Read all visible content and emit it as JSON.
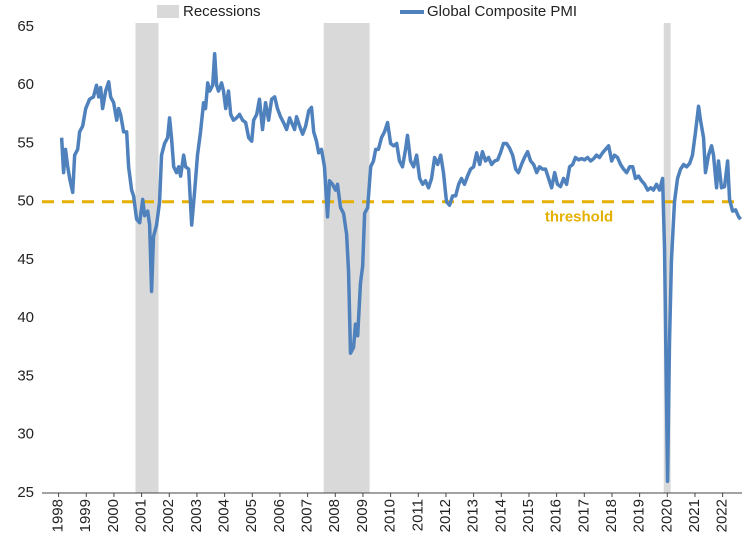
{
  "chart_data": {
    "type": "line",
    "legend": "top",
    "xlim": [
      1997.4,
      2022.7
    ],
    "ylim": [
      25,
      65
    ],
    "yticks": [
      25,
      30,
      35,
      40,
      45,
      50,
      55,
      60,
      65
    ],
    "xticks": [
      1998,
      1999,
      2000,
      2001,
      2002,
      2003,
      2004,
      2005,
      2006,
      2007,
      2008,
      2009,
      2010,
      2011,
      2012,
      2013,
      2014,
      2015,
      2016,
      2017,
      2018,
      2019,
      2020,
      2021,
      2022
    ],
    "recessions": {
      "name": "Recessions",
      "color": "#d9d9d9",
      "spans": [
        [
          2000.78,
          2001.61
        ],
        [
          2007.58,
          2009.24
        ],
        [
          2019.87,
          2020.12
        ]
      ]
    },
    "threshold": {
      "label": "threshold",
      "value": 50,
      "color": "#e6b000"
    },
    "x": [
      1998.11,
      1998.18,
      1998.25,
      1998.33,
      1998.4,
      1998.51,
      1998.58,
      1998.69,
      1998.76,
      1998.87,
      1998.98,
      1999.12,
      1999.26,
      1999.37,
      1999.45,
      1999.52,
      1999.59,
      1999.7,
      1999.81,
      1999.88,
      1999.99,
      2000.1,
      2000.17,
      2000.24,
      2000.35,
      2000.46,
      2000.53,
      2000.64,
      2000.71,
      2000.82,
      2000.93,
      2001.04,
      2001.11,
      2001.22,
      2001.29,
      2001.36,
      2001.43,
      2001.54,
      2001.65,
      2001.72,
      2001.83,
      2001.94,
      2002.01,
      2002.08,
      2002.16,
      2002.26,
      2002.34,
      2002.41,
      2002.52,
      2002.59,
      2002.7,
      2002.81,
      2002.92,
      2003.02,
      2003.13,
      2003.24,
      2003.31,
      2003.39,
      2003.46,
      2003.57,
      2003.64,
      2003.71,
      2003.78,
      2003.89,
      2003.96,
      2004.04,
      2004.14,
      2004.22,
      2004.32,
      2004.43,
      2004.54,
      2004.65,
      2004.76,
      2004.87,
      2004.98,
      2005.05,
      2005.16,
      2005.26,
      2005.37,
      2005.48,
      2005.59,
      2005.7,
      2005.81,
      2005.91,
      2006.02,
      2006.13,
      2006.24,
      2006.35,
      2006.42,
      2006.53,
      2006.6,
      2006.71,
      2006.82,
      2006.93,
      2007.04,
      2007.14,
      2007.22,
      2007.32,
      2007.4,
      2007.5,
      2007.61,
      2007.72,
      2007.79,
      2007.9,
      2008.01,
      2008.08,
      2008.19,
      2008.3,
      2008.41,
      2008.48,
      2008.55,
      2008.66,
      2008.73,
      2008.81,
      2008.91,
      2008.99,
      2009.06,
      2009.17,
      2009.28,
      2009.38,
      2009.46,
      2009.56,
      2009.67,
      2009.78,
      2009.89,
      2010.0,
      2010.11,
      2010.22,
      2010.32,
      2010.43,
      2010.54,
      2010.61,
      2010.72,
      2010.83,
      2010.94,
      2011.05,
      2011.16,
      2011.26,
      2011.37,
      2011.48,
      2011.59,
      2011.7,
      2011.81,
      2011.91,
      2012.02,
      2012.13,
      2012.24,
      2012.35,
      2012.46,
      2012.56,
      2012.67,
      2012.78,
      2012.89,
      2013.0,
      2013.11,
      2013.22,
      2013.32,
      2013.43,
      2013.54,
      2013.65,
      2013.76,
      2013.87,
      2013.97,
      2014.08,
      2014.19,
      2014.3,
      2014.41,
      2014.52,
      2014.62,
      2014.73,
      2014.84,
      2014.95,
      2015.06,
      2015.17,
      2015.28,
      2015.38,
      2015.49,
      2015.6,
      2015.71,
      2015.82,
      2015.93,
      2016.03,
      2016.14,
      2016.25,
      2016.36,
      2016.47,
      2016.58,
      2016.68,
      2016.79,
      2016.9,
      2017.01,
      2017.12,
      2017.23,
      2017.34,
      2017.44,
      2017.55,
      2017.66,
      2017.77,
      2017.88,
      2017.99,
      2018.09,
      2018.2,
      2018.31,
      2018.42,
      2018.53,
      2018.64,
      2018.75,
      2018.85,
      2018.96,
      2019.07,
      2019.18,
      2019.29,
      2019.4,
      2019.5,
      2019.61,
      2019.72,
      2019.83,
      2019.9,
      2020.01,
      2020.08,
      2020.15,
      2020.26,
      2020.37,
      2020.48,
      2020.59,
      2020.7,
      2020.81,
      2020.91,
      2021.02,
      2021.13,
      2021.2,
      2021.31,
      2021.38,
      2021.49,
      2021.6,
      2021.67,
      2021.78,
      2021.85,
      2021.96,
      2022.07,
      2022.18,
      2022.25,
      2022.36,
      2022.47,
      2022.58,
      2022.65
    ],
    "series": [
      {
        "name": "Global Composite PMI",
        "color": "#4f81bd",
        "values": [
          55.5,
          52.5,
          54.5,
          53,
          52,
          50.8,
          54,
          54.5,
          56,
          56.5,
          58,
          58.8,
          59,
          60,
          59,
          59.8,
          58,
          59.5,
          60.3,
          59,
          58.5,
          57,
          58,
          57.5,
          56,
          56,
          53,
          51,
          50.5,
          48.5,
          48.2,
          50.2,
          48.8,
          49.2,
          48,
          42.3,
          47,
          48,
          50,
          54,
          55,
          55.5,
          57.2,
          55.5,
          53,
          52.5,
          53,
          52.2,
          54,
          53,
          52.8,
          48,
          51,
          54,
          56,
          58.5,
          58,
          60.2,
          59.5,
          60,
          62.7,
          60,
          59.5,
          60.2,
          59.5,
          58,
          59.5,
          57.5,
          57,
          57.2,
          57.5,
          57,
          56.8,
          55.5,
          55.2,
          57,
          57.5,
          58.8,
          56.2,
          58.5,
          57,
          58.8,
          59,
          58,
          57.3,
          56.8,
          56.2,
          57.2,
          56.8,
          56.2,
          57.3,
          56.5,
          55.8,
          56.5,
          57.8,
          58.1,
          56,
          55.2,
          54.2,
          54.5,
          53,
          48.7,
          51.8,
          51.5,
          51,
          51.5,
          49.5,
          49,
          47.2,
          44,
          37,
          37.5,
          39.5,
          38.5,
          43,
          44.5,
          49,
          49.5,
          53,
          53.5,
          54.5,
          54.5,
          55.5,
          56,
          56.8,
          55,
          54.8,
          55,
          53.5,
          53,
          54.5,
          55.7,
          53.5,
          53,
          54,
          52,
          51.5,
          51.8,
          51.2,
          52,
          53.8,
          53.2,
          54,
          52.5,
          50,
          49.7,
          50.5,
          50.5,
          51.5,
          52,
          51.5,
          52.2,
          52.8,
          53,
          54.2,
          53.2,
          54.3,
          53.5,
          53.8,
          53.2,
          53.5,
          53.6,
          54.2,
          55,
          55,
          54.6,
          54,
          52.8,
          52.5,
          53.2,
          53.8,
          54.3,
          53.5,
          53.2,
          52.5,
          53,
          52.8,
          52.8,
          52,
          51.2,
          52.5,
          51.5,
          51.3,
          52,
          51.5,
          53,
          53.2,
          53.8,
          53.6,
          53.7,
          53.6,
          53.8,
          53.5,
          53.7,
          54,
          53.8,
          54.2,
          54.5,
          54.8,
          53.5,
          54,
          53.8,
          53.2,
          52.8,
          52.5,
          53,
          53,
          52,
          52.2,
          51.8,
          51.5,
          51,
          51.2,
          51,
          51.5,
          51,
          52,
          46,
          26,
          38,
          45,
          50,
          52,
          52.8,
          53.2,
          53,
          53.3,
          54,
          56,
          58.2,
          57,
          55.5,
          52.5,
          54,
          54.8,
          54,
          51.2,
          53.5,
          51.2,
          51.3,
          53.5,
          50.2,
          49.2,
          49.3,
          48.7,
          48.5
        ]
      }
    ]
  }
}
